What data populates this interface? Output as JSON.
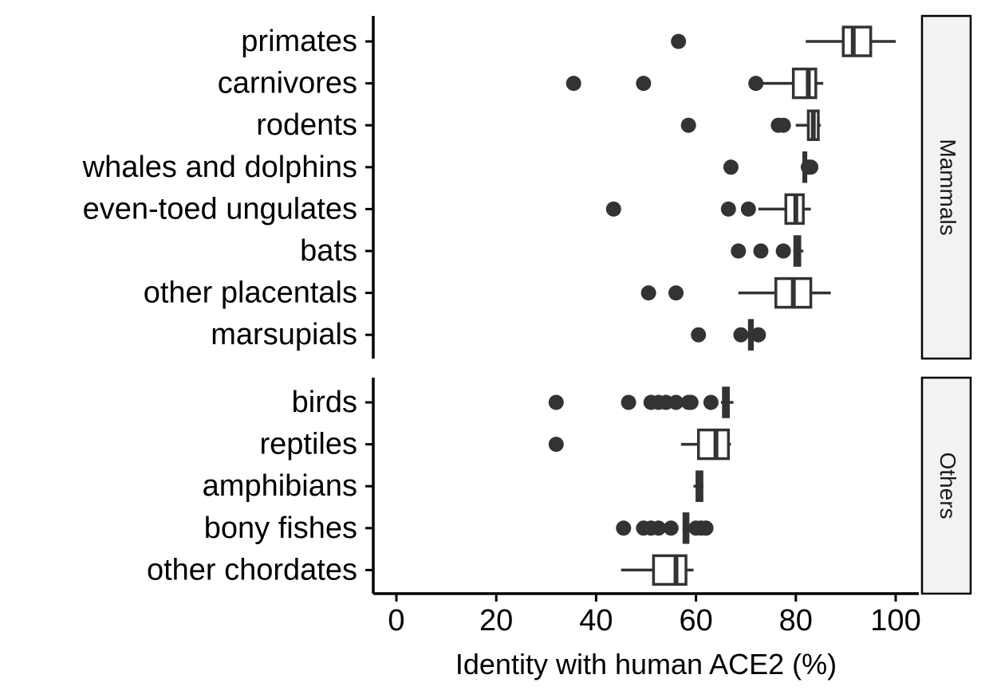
{
  "chart_data": {
    "type": "boxplot",
    "orientation": "horizontal",
    "xlabel": "Identity with human ACE2 (%)",
    "xlim": [
      -5,
      105
    ],
    "x_ticks": [
      0,
      20,
      40,
      60,
      80,
      100
    ],
    "x_tick_labels": [
      "0",
      "20",
      "40",
      "60",
      "80",
      "100"
    ],
    "colors": {
      "ink": "#333333",
      "axis": "#000000",
      "strip_fill": "#f2f2f2",
      "box_fill": "#ffffff"
    },
    "panels": [
      {
        "strip_label": "Mammals",
        "groups": [
          {
            "label": "primates",
            "whisker_low": 82,
            "q1": 89.5,
            "median": 91.5,
            "q3": 95,
            "whisker_high": 100,
            "outliers": [
              56.5
            ]
          },
          {
            "label": "carnivores",
            "whisker_low": 73,
            "q1": 79.5,
            "median": 82.5,
            "q3": 84,
            "whisker_high": 85.5,
            "outliers": [
              35.5,
              49.5,
              72
            ]
          },
          {
            "label": "rodents",
            "whisker_low": 80,
            "q1": 82.5,
            "median": 83.5,
            "q3": 84.5,
            "whisker_high": 85,
            "outliers": [
              58.5,
              76.5,
              77.5
            ]
          },
          {
            "label": "whales and dolphins",
            "whisker_low": 81.5,
            "q1": 81.6,
            "median": 81.8,
            "q3": 82,
            "whisker_high": 82.2,
            "outliers": [
              67,
              82.5,
              83
            ]
          },
          {
            "label": "even-toed ungulates",
            "whisker_low": 72.5,
            "q1": 78,
            "median": 80,
            "q3": 81.5,
            "whisker_high": 83,
            "outliers": [
              43.5,
              66.5,
              70.5
            ]
          },
          {
            "label": "bats",
            "whisker_low": 79.5,
            "q1": 79.8,
            "median": 80.2,
            "q3": 80.8,
            "whisker_high": 81.5,
            "outliers": [
              68.5,
              73,
              77.5
            ]
          },
          {
            "label": "other placentals",
            "whisker_low": 68.5,
            "q1": 76,
            "median": 79.5,
            "q3": 83,
            "whisker_high": 87,
            "outliers": [
              50.5,
              56
            ]
          },
          {
            "label": "marsupials",
            "whisker_low": 70.5,
            "q1": 70.7,
            "median": 71,
            "q3": 71.3,
            "whisker_high": 71.5,
            "outliers": [
              60.5,
              69,
              72.5
            ]
          }
        ]
      },
      {
        "strip_label": "Others",
        "groups": [
          {
            "label": "birds",
            "whisker_low": 65,
            "q1": 65.5,
            "median": 66,
            "q3": 66.5,
            "whisker_high": 67.5,
            "outliers": [
              32,
              46.5,
              51,
              52.5,
              54,
              56,
              58.5,
              59,
              63
            ]
          },
          {
            "label": "reptiles",
            "whisker_low": 57,
            "q1": 60.5,
            "median": 64,
            "q3": 66.5,
            "whisker_high": 67,
            "outliers": [
              32
            ]
          },
          {
            "label": "amphibians",
            "whisker_low": 59.5,
            "q1": 60.2,
            "median": 60.8,
            "q3": 61.2,
            "whisker_high": 61.5,
            "outliers": []
          },
          {
            "label": "bony fishes",
            "whisker_low": 57.3,
            "q1": 57.6,
            "median": 58,
            "q3": 58.4,
            "whisker_high": 58.6,
            "outliers": [
              45.5,
              49.5,
              51,
              52.5,
              55,
              60,
              61,
              62
            ]
          },
          {
            "label": "other chordates",
            "whisker_low": 45,
            "q1": 51.5,
            "median": 56,
            "q3": 58,
            "whisker_high": 59.5,
            "outliers": []
          }
        ]
      }
    ]
  }
}
